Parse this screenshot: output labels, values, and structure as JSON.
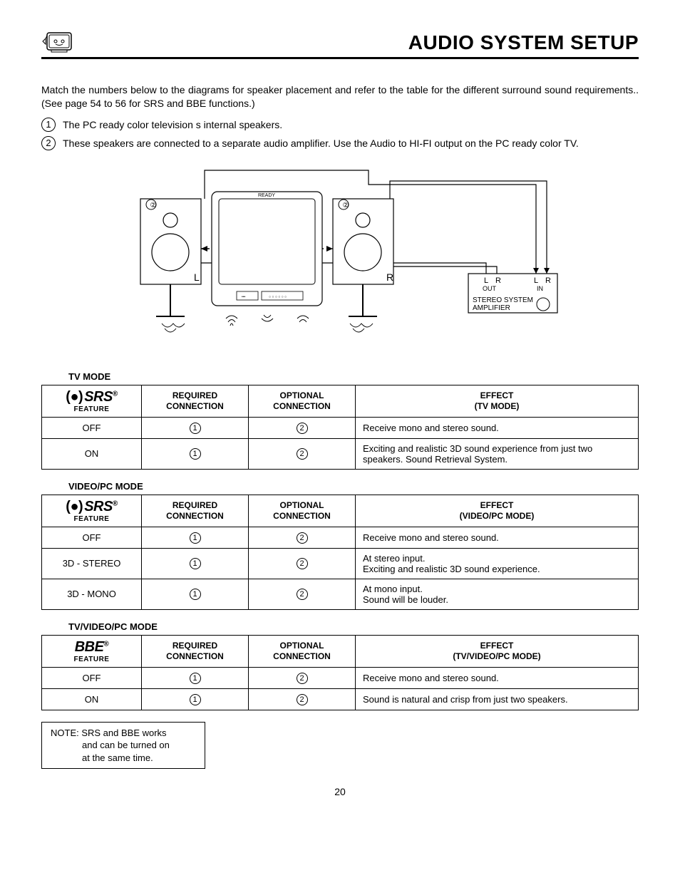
{
  "header": {
    "title": "AUDIO SYSTEM SETUP"
  },
  "intro": "Match the numbers below to the diagrams for speaker placement and refer to the table for the different surround sound requirements.. (See page 54 to 56 for SRS and BBE functions.)",
  "bullets": [
    {
      "num": "1",
      "text": "The PC ready color television s internal speakers."
    },
    {
      "num": "2",
      "text": "These speakers are connected to a separate audio amplifier.  Use the  Audio to HI-FI  output on the PC ready color TV."
    }
  ],
  "diagram": {
    "speaker_nums": "2",
    "speaker_L": "L",
    "speaker_R": "R",
    "tv_ready": "READY",
    "amp_title1": "STEREO SYSTEM",
    "amp_title2": "AMPLIFIER",
    "out_L": "L",
    "out_R": "R",
    "out_label": "OUT",
    "in_L": "L",
    "in_R": "R",
    "in_label": "IN"
  },
  "tables": [
    {
      "mode_label": "TV MODE",
      "brand": "SRS",
      "brand_class": "brand-srs",
      "feature_sub": "FEATURE",
      "headers": {
        "req": "REQUIRED CONNECTION",
        "opt": "OPTIONAL CONNECTION",
        "eff_line1": "EFFECT",
        "eff_line2": "(TV MODE)"
      },
      "rows": [
        {
          "feature": "OFF",
          "req": "1",
          "opt": "2",
          "effect": "Receive mono and stereo sound."
        },
        {
          "feature": "ON",
          "req": "1",
          "opt": "2",
          "effect": "Exciting and realistic 3D sound experience from just two speakers. Sound Retrieval System."
        }
      ]
    },
    {
      "mode_label": "VIDEO/PC MODE",
      "brand": "SRS",
      "brand_class": "brand-srs",
      "feature_sub": "FEATURE",
      "headers": {
        "req": "REQUIRED CONNECTION",
        "opt": "OPTIONAL CONNECTION",
        "eff_line1": "EFFECT",
        "eff_line2": "(VIDEO/PC MODE)"
      },
      "rows": [
        {
          "feature": "OFF",
          "req": "1",
          "opt": "2",
          "effect": "Receive mono and stereo sound."
        },
        {
          "feature": "3D - STEREO",
          "req": "1",
          "opt": "2",
          "effect": "At stereo input.\nExciting and realistic 3D sound experience."
        },
        {
          "feature": "3D - MONO",
          "req": "1",
          "opt": "2",
          "effect": "At mono input.\nSound will be louder."
        }
      ]
    },
    {
      "mode_label": "TV/VIDEO/PC MODE",
      "brand": "BBE",
      "brand_class": "",
      "feature_sub": "FEATURE",
      "headers": {
        "req": "REQUIRED CONNECTION",
        "opt": "OPTIONAL CONNECTION",
        "eff_line1": "EFFECT",
        "eff_line2": "(TV/VIDEO/PC MODE)"
      },
      "rows": [
        {
          "feature": "OFF",
          "req": "1",
          "opt": "2",
          "effect": "Receive mono and stereo sound."
        },
        {
          "feature": "ON",
          "req": "1",
          "opt": "2",
          "effect": "Sound is natural and crisp from just two speakers."
        }
      ]
    }
  ],
  "note": {
    "line1": "NOTE: SRS and BBE works",
    "line2": "and can be turned on",
    "line3": "at the same time."
  },
  "page_number": "20"
}
